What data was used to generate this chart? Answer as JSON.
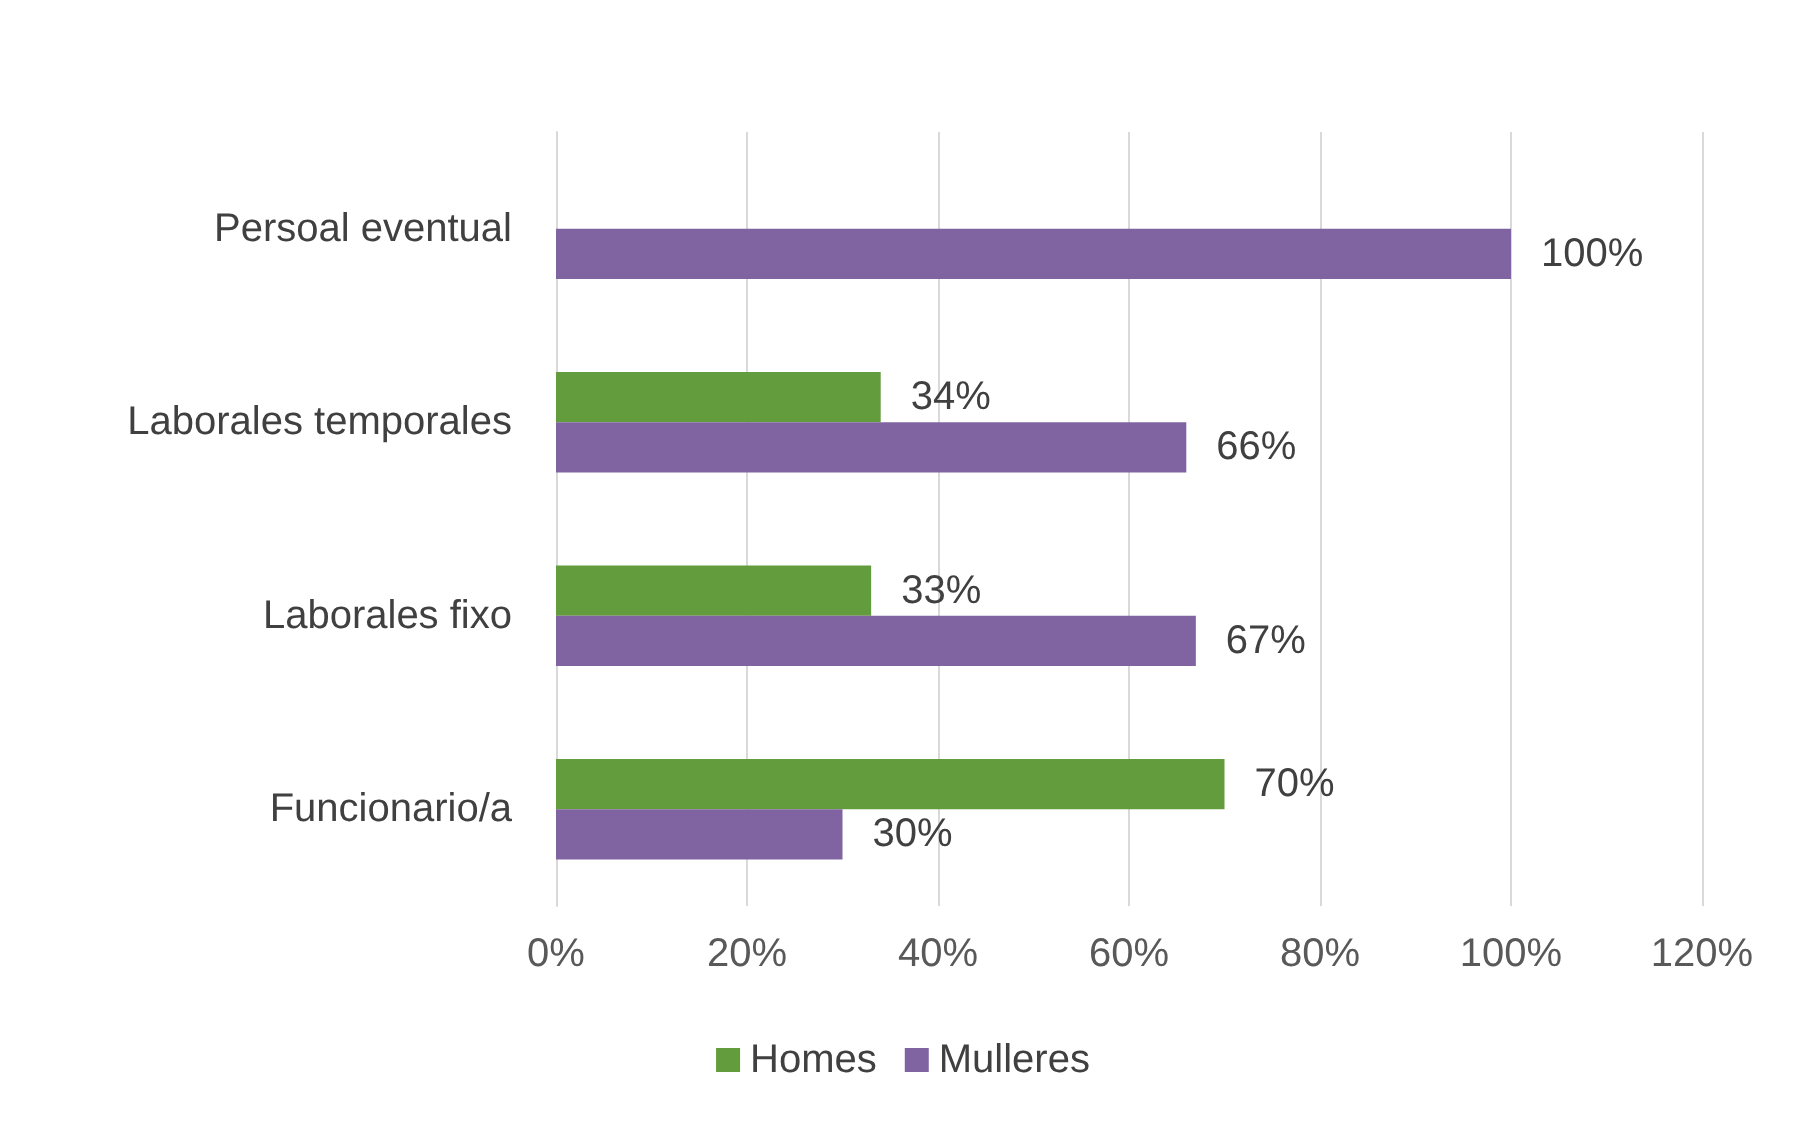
{
  "chart_data": {
    "type": "bar",
    "orientation": "horizontal",
    "categories": [
      "Persoal eventual",
      "Laborales temporales",
      "Laborales fixo",
      "Funcionario/a"
    ],
    "series": [
      {
        "name": "Homes",
        "color": "#639c3c",
        "values": [
          null,
          34,
          33,
          70
        ],
        "value_labels": [
          null,
          "34%",
          "33%",
          "70%"
        ]
      },
      {
        "name": "Mulleres",
        "color": "#8064a2",
        "values": [
          100,
          66,
          67,
          30
        ],
        "value_labels": [
          "100%",
          "66%",
          "67%",
          "30%"
        ]
      }
    ],
    "xlim": [
      0,
      120
    ],
    "xticks": [
      {
        "value": 0,
        "label": "0%"
      },
      {
        "value": 20,
        "label": "20%"
      },
      {
        "value": 40,
        "label": "40%"
      },
      {
        "value": 60,
        "label": "60%"
      },
      {
        "value": 80,
        "label": "80%"
      },
      {
        "value": 100,
        "label": "100%"
      },
      {
        "value": 120,
        "label": "120%"
      }
    ],
    "grid": "x",
    "legend": "bottom"
  }
}
